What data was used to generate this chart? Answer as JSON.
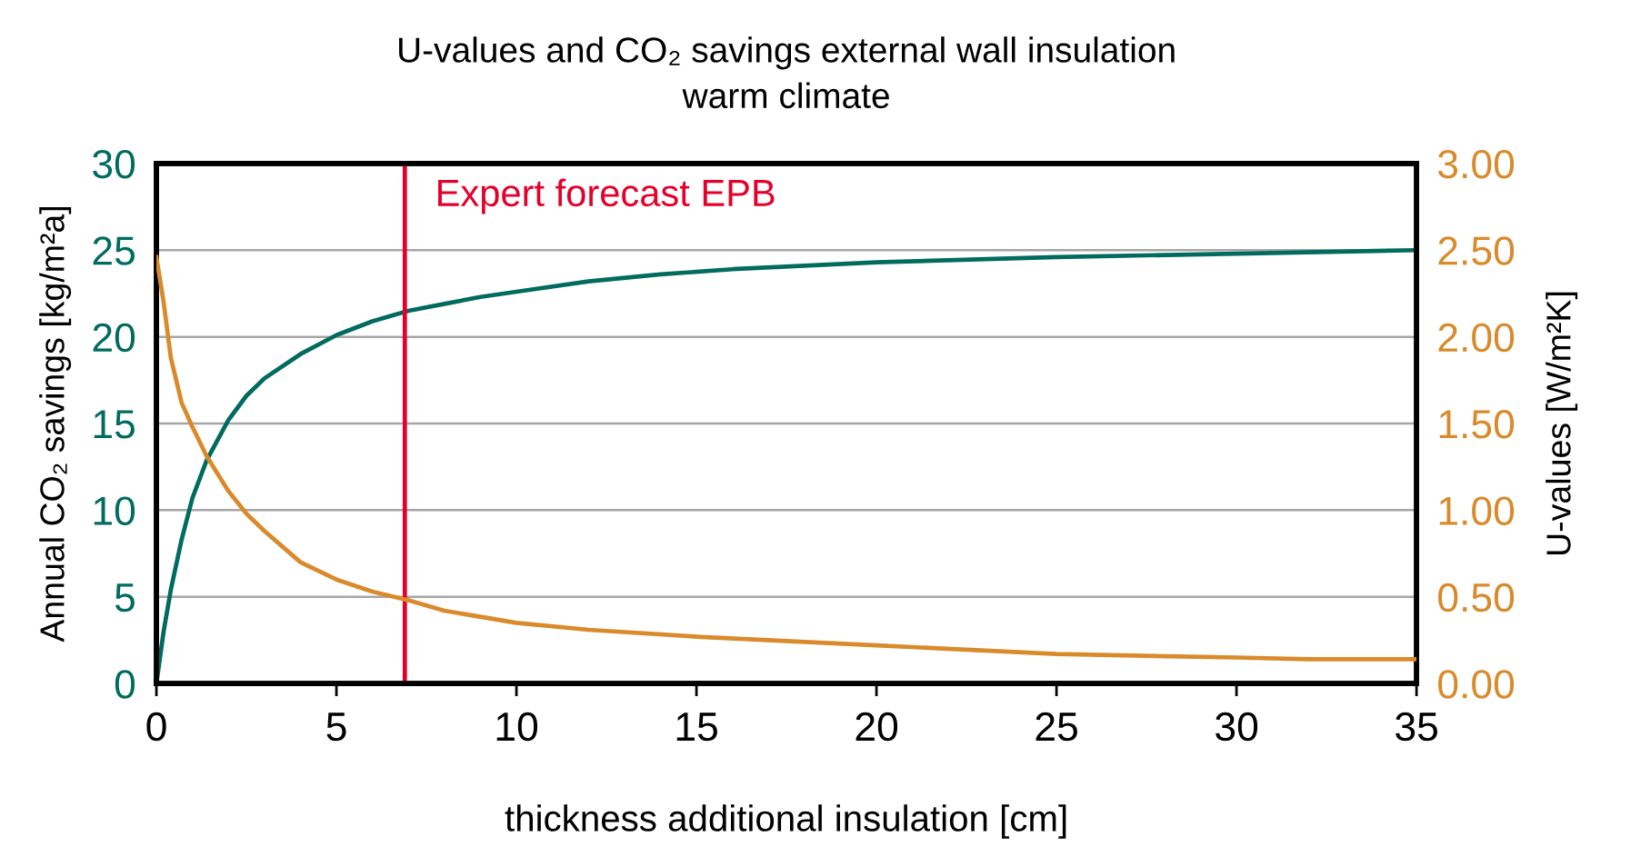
{
  "chart_data": {
    "type": "line",
    "title": "U-values and CO₂ savings external wall insulation\nwarm climate",
    "xlabel": "thickness additional insulation [cm]",
    "ylabel": "Annual CO₂ savings [kg/m²a]",
    "y2label": "U-values [W/m²K]",
    "xlim": [
      0,
      35
    ],
    "xticks": [
      0,
      5,
      10,
      15,
      20,
      25,
      30,
      35
    ],
    "ylim": [
      0,
      30
    ],
    "yticks": [
      0,
      5,
      10,
      15,
      20,
      25,
      30
    ],
    "y2lim": [
      0,
      3
    ],
    "y2ticks": [
      {
        "value": 0,
        "label": "0.00"
      },
      {
        "value": 0.5,
        "label": "0.50"
      },
      {
        "value": 1,
        "label": "1.00"
      },
      {
        "value": 1.5,
        "label": "1.50"
      },
      {
        "value": 2,
        "label": "2.00"
      },
      {
        "value": 2.5,
        "label": "2.50"
      },
      {
        "value": 3,
        "label": "3.00"
      }
    ],
    "grid": "y",
    "series": [
      {
        "color": "#006b5e",
        "x": [
          0,
          0.2,
          0.4,
          0.7,
          1,
          1.4,
          2,
          2.5,
          3,
          4,
          5,
          6,
          7,
          8,
          9,
          10,
          12,
          14,
          16,
          18,
          20,
          25,
          30,
          35
        ],
        "values": [
          0,
          3.0,
          5.4,
          8.3,
          10.7,
          12.9,
          15.2,
          16.6,
          17.6,
          19.0,
          20.1,
          20.9,
          21.5,
          21.9,
          22.3,
          22.6,
          23.2,
          23.6,
          23.9,
          24.1,
          24.3,
          24.6,
          24.8,
          25.0
        ]
      },
      {
        "color": "#d98a2a",
        "axis": "y2",
        "x": [
          0,
          0.2,
          0.4,
          0.7,
          1,
          1.4,
          2,
          2.5,
          3,
          4,
          5,
          6,
          7,
          8,
          10,
          12,
          15,
          20,
          25,
          30,
          32,
          35
        ],
        "values": [
          2.46,
          2.2,
          1.88,
          1.62,
          1.48,
          1.31,
          1.11,
          0.98,
          0.88,
          0.7,
          0.6,
          0.53,
          0.48,
          0.42,
          0.35,
          0.31,
          0.27,
          0.22,
          0.17,
          0.15,
          0.14,
          0.14
        ]
      }
    ],
    "ref_lines": [
      {
        "axis": "x",
        "value": 6.9,
        "label": "Expert forecast EPB",
        "color": "#e4002b"
      }
    ]
  }
}
